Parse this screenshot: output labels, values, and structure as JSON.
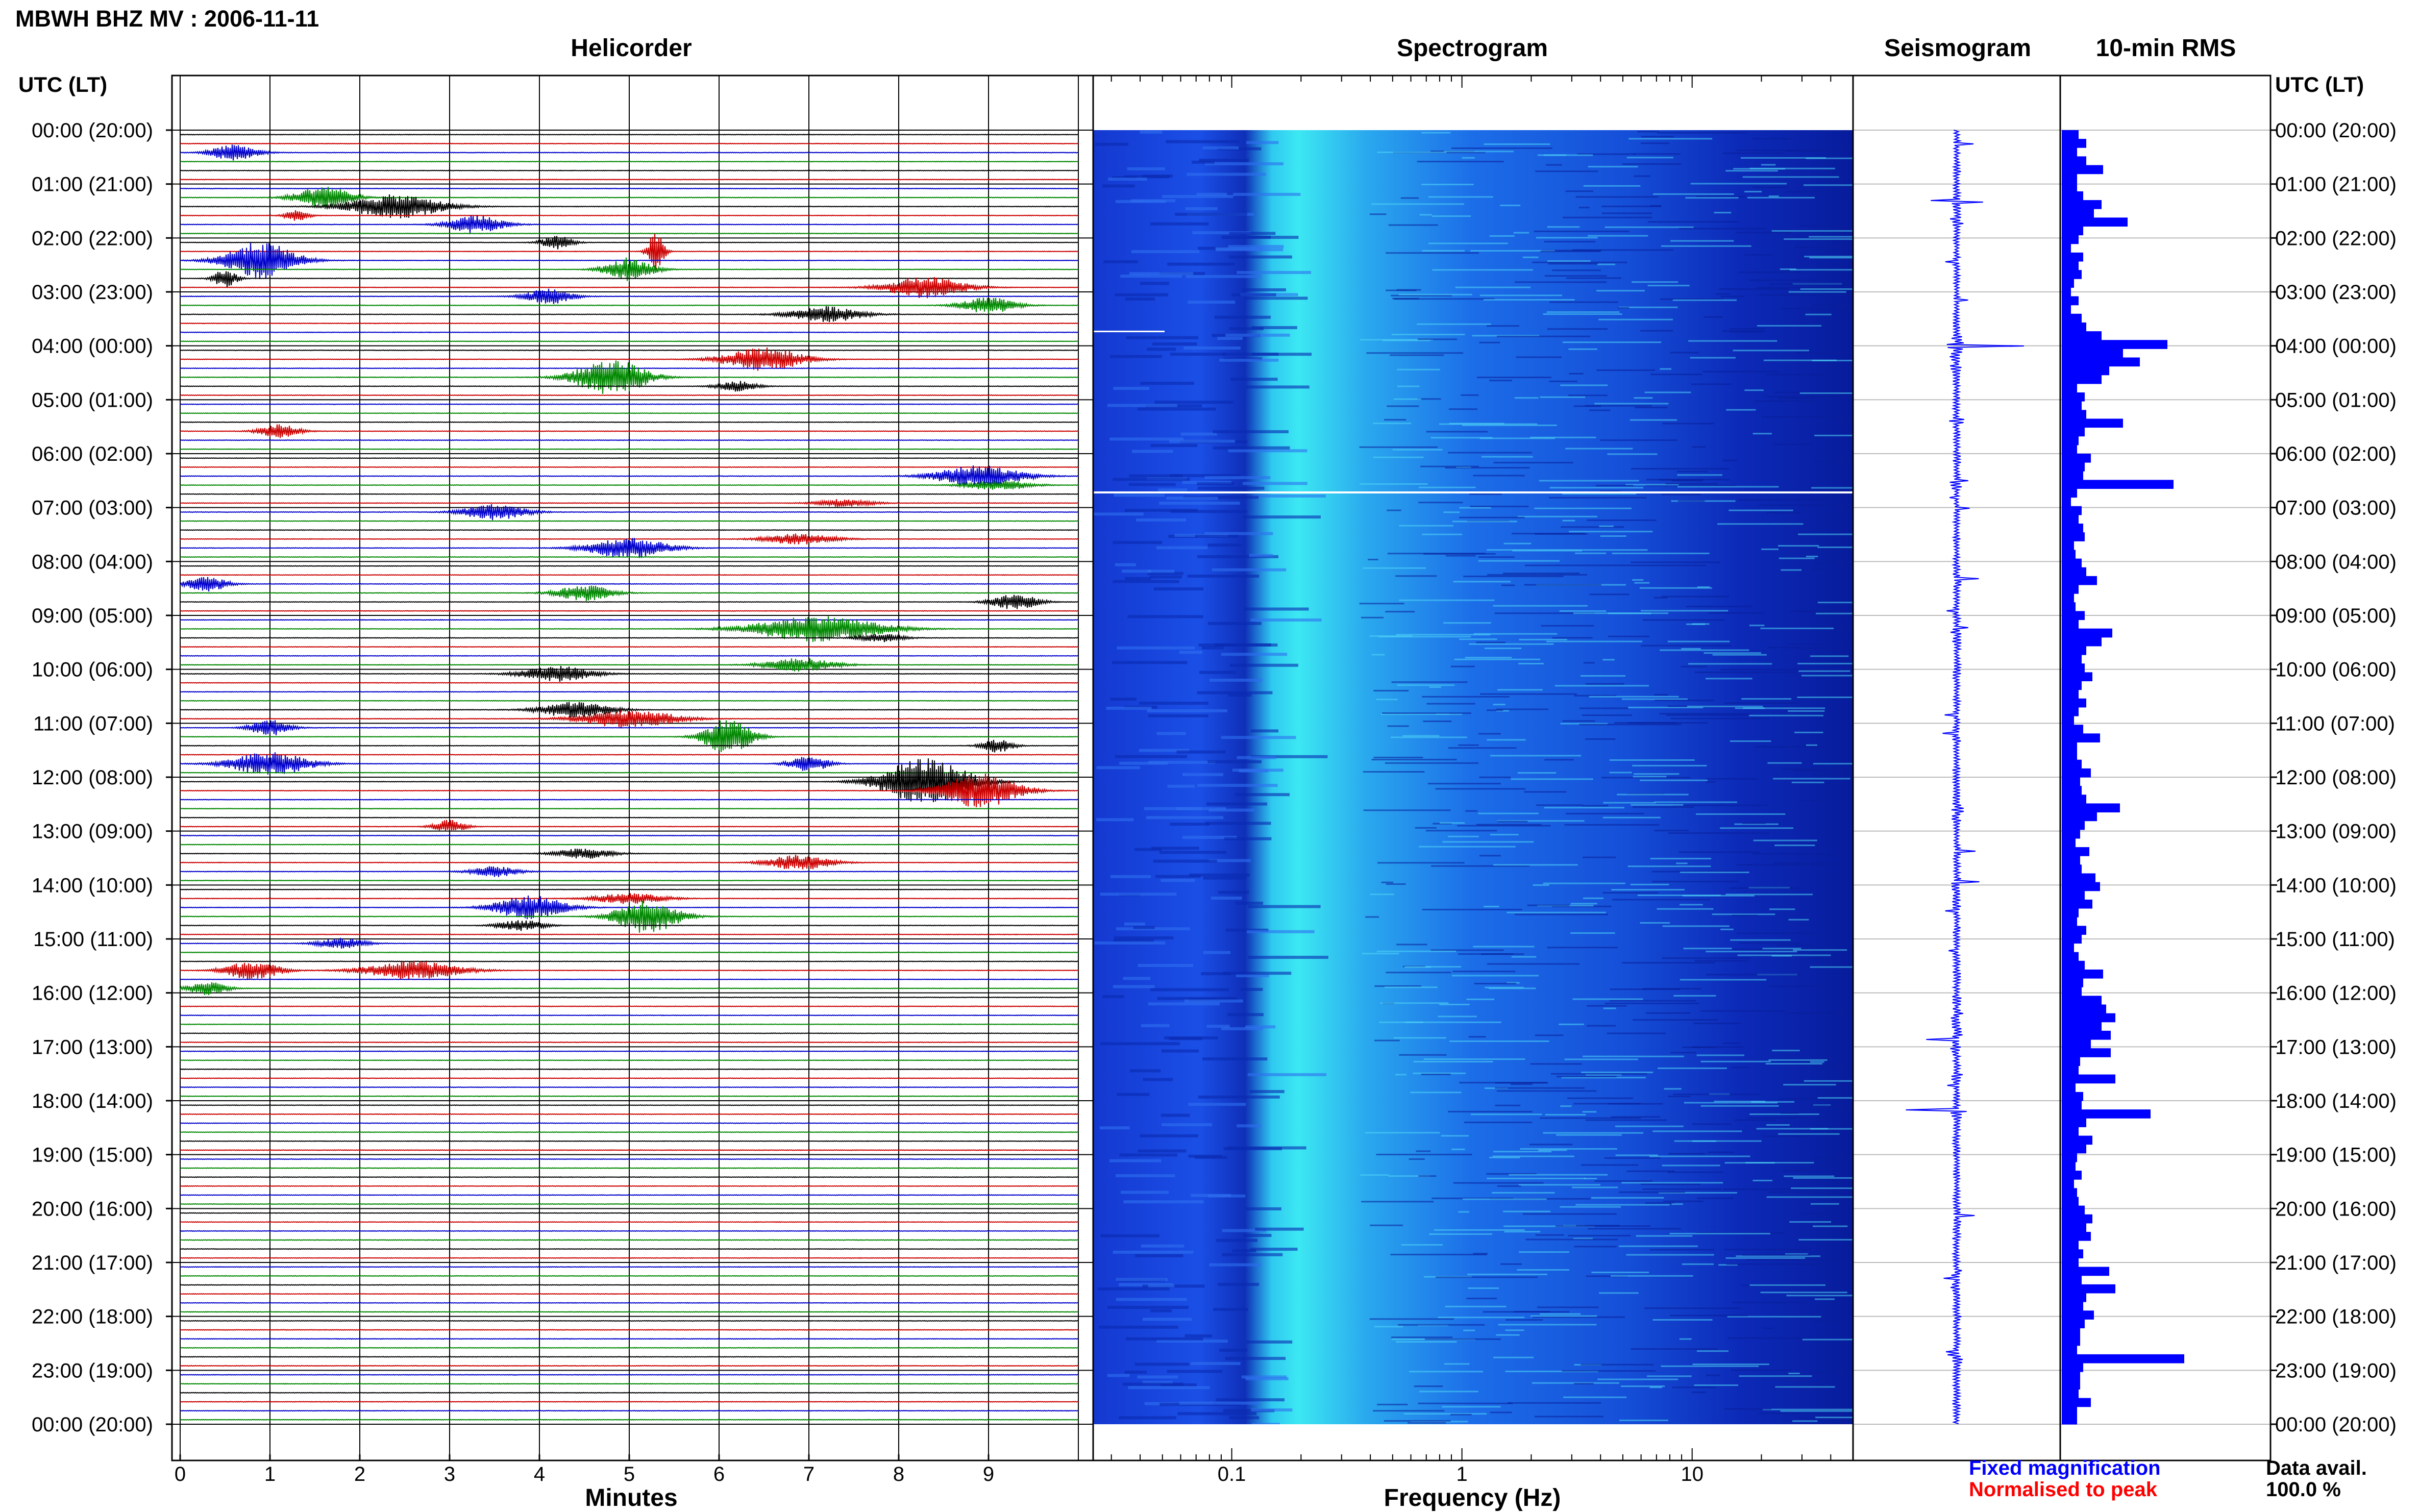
{
  "page": {
    "title": "MBWH BHZ MV : 2006-11-11",
    "utc_header_left": "UTC (LT)",
    "utc_header_right": "UTC (LT)"
  },
  "panels": {
    "helicorder_title": "Helicorder",
    "spectrogram_title": "Spectrogram",
    "seismogram_title": "Seismogram",
    "rms_title": "10-min RMS"
  },
  "legend": {
    "fixed": "Fixed magnification",
    "normalised": "Normalised to peak",
    "fixed_color": "#0000ff",
    "normalised_color": "#ff0000",
    "data_avail_label": "Data avail.",
    "data_avail_value": "100.0 %"
  },
  "chart_data": [
    {
      "type": "helicorder",
      "title": "Helicorder",
      "xlabel": "Minutes",
      "xlim": [
        0,
        10
      ],
      "x_ticks": [
        "0",
        "1",
        "2",
        "3",
        "4",
        "5",
        "6",
        "7",
        "8",
        "9"
      ],
      "y_tick_labels": [
        "00:00 (20:00)",
        "01:00 (21:00)",
        "02:00 (22:00)",
        "03:00 (23:00)",
        "04:00 (00:00)",
        "05:00 (01:00)",
        "06:00 (02:00)",
        "07:00 (03:00)",
        "08:00 (04:00)",
        "09:00 (05:00)",
        "10:00 (06:00)",
        "11:00 (07:00)",
        "12:00 (08:00)",
        "13:00 (09:00)",
        "14:00 (10:00)",
        "15:00 (11:00)",
        "16:00 (12:00)",
        "17:00 (13:00)",
        "18:00 (14:00)",
        "19:00 (15:00)",
        "20:00 (16:00)",
        "21:00 (17:00)",
        "22:00 (18:00)",
        "23:00 (19:00)",
        "00:00 (20:00)"
      ],
      "trace_colors": [
        "#000000",
        "#cc0000",
        "#0000cc",
        "#008800"
      ],
      "events": [
        {
          "line": 2,
          "minute": 0.6,
          "amp": 0.6,
          "dur": 0.6
        },
        {
          "line": 7,
          "minute": 1.6,
          "amp": 0.9,
          "dur": 0.7
        },
        {
          "line": 8,
          "minute": 2.4,
          "amp": 0.9,
          "dur": 1.2
        },
        {
          "line": 9,
          "minute": 1.3,
          "amp": 0.4,
          "dur": 0.3
        },
        {
          "line": 10,
          "minute": 3.3,
          "amp": 0.7,
          "dur": 0.7
        },
        {
          "line": 12,
          "minute": 4.2,
          "amp": 0.5,
          "dur": 0.4
        },
        {
          "line": 13,
          "minute": 5.3,
          "amp": 1.6,
          "dur": 0.2
        },
        {
          "line": 14,
          "minute": 0.9,
          "amp": 1.4,
          "dur": 0.9
        },
        {
          "line": 15,
          "minute": 5.0,
          "amp": 0.9,
          "dur": 0.6
        },
        {
          "line": 16,
          "minute": 0.5,
          "amp": 0.7,
          "dur": 0.3
        },
        {
          "line": 17,
          "minute": 8.3,
          "amp": 0.8,
          "dur": 1.0
        },
        {
          "line": 18,
          "minute": 4.1,
          "amp": 0.6,
          "dur": 0.6
        },
        {
          "line": 19,
          "minute": 9.0,
          "amp": 0.6,
          "dur": 0.7
        },
        {
          "line": 20,
          "minute": 7.2,
          "amp": 0.6,
          "dur": 0.9
        },
        {
          "line": 25,
          "minute": 6.5,
          "amp": 0.9,
          "dur": 1.0
        },
        {
          "line": 27,
          "minute": 4.8,
          "amp": 1.4,
          "dur": 0.9
        },
        {
          "line": 28,
          "minute": 6.2,
          "amp": 0.4,
          "dur": 0.5
        },
        {
          "line": 33,
          "minute": 1.1,
          "amp": 0.5,
          "dur": 0.5
        },
        {
          "line": 38,
          "minute": 8.9,
          "amp": 0.8,
          "dur": 1.1
        },
        {
          "line": 39,
          "minute": 9.1,
          "amp": 0.4,
          "dur": 0.8
        },
        {
          "line": 41,
          "minute": 7.4,
          "amp": 0.3,
          "dur": 0.7
        },
        {
          "line": 42,
          "minute": 3.5,
          "amp": 0.6,
          "dur": 0.8
        },
        {
          "line": 45,
          "minute": 6.9,
          "amp": 0.4,
          "dur": 0.9
        },
        {
          "line": 46,
          "minute": 5.0,
          "amp": 0.8,
          "dur": 1.0
        },
        {
          "line": 50,
          "minute": 0.3,
          "amp": 0.6,
          "dur": 0.5
        },
        {
          "line": 51,
          "minute": 4.5,
          "amp": 0.6,
          "dur": 0.7
        },
        {
          "line": 52,
          "minute": 9.3,
          "amp": 0.6,
          "dur": 0.6
        },
        {
          "line": 55,
          "minute": 7.1,
          "amp": 1.0,
          "dur": 1.6
        },
        {
          "line": 56,
          "minute": 7.8,
          "amp": 0.3,
          "dur": 0.6
        },
        {
          "line": 59,
          "minute": 6.9,
          "amp": 0.5,
          "dur": 0.9
        },
        {
          "line": 60,
          "minute": 4.2,
          "amp": 0.6,
          "dur": 0.9
        },
        {
          "line": 64,
          "minute": 4.4,
          "amp": 0.6,
          "dur": 0.9
        },
        {
          "line": 65,
          "minute": 5.0,
          "amp": 0.7,
          "dur": 1.2
        },
        {
          "line": 66,
          "minute": 1.0,
          "amp": 0.6,
          "dur": 0.5
        },
        {
          "line": 67,
          "minute": 6.1,
          "amp": 1.4,
          "dur": 0.6
        },
        {
          "line": 68,
          "minute": 9.1,
          "amp": 0.5,
          "dur": 0.4
        },
        {
          "line": 70,
          "minute": 1.0,
          "amp": 0.9,
          "dur": 1.0
        },
        {
          "line": 70,
          "minute": 7.0,
          "amp": 0.6,
          "dur": 0.5
        },
        {
          "line": 72,
          "minute": 8.3,
          "amp": 1.8,
          "dur": 1.1
        },
        {
          "line": 73,
          "minute": 8.9,
          "amp": 1.3,
          "dur": 1.0
        },
        {
          "line": 77,
          "minute": 3.0,
          "amp": 0.5,
          "dur": 0.4
        },
        {
          "line": 80,
          "minute": 4.5,
          "amp": 0.4,
          "dur": 0.7
        },
        {
          "line": 81,
          "minute": 6.9,
          "amp": 0.6,
          "dur": 0.8
        },
        {
          "line": 82,
          "minute": 3.5,
          "amp": 0.4,
          "dur": 0.6
        },
        {
          "line": 85,
          "minute": 5.0,
          "amp": 0.4,
          "dur": 0.9
        },
        {
          "line": 86,
          "minute": 3.9,
          "amp": 0.9,
          "dur": 0.9
        },
        {
          "line": 87,
          "minute": 5.2,
          "amp": 1.3,
          "dur": 0.8
        },
        {
          "line": 88,
          "minute": 3.8,
          "amp": 0.4,
          "dur": 0.6
        },
        {
          "line": 90,
          "minute": 1.8,
          "amp": 0.4,
          "dur": 0.6
        },
        {
          "line": 93,
          "minute": 0.8,
          "amp": 0.7,
          "dur": 0.7
        },
        {
          "line": 93,
          "minute": 2.6,
          "amp": 0.7,
          "dur": 1.2
        },
        {
          "line": 95,
          "minute": 0.3,
          "amp": 0.5,
          "dur": 0.5
        }
      ]
    },
    {
      "type": "heatmap",
      "title": "Spectrogram",
      "xlabel": "Frequency (Hz)",
      "x_scale": "log",
      "xlim": [
        0.025,
        50
      ],
      "x_ticks": [
        "0.1",
        "1",
        "10"
      ],
      "x_tick_values": [
        0.1,
        1,
        10
      ]
    },
    {
      "type": "seismogram",
      "title": "Seismogram",
      "color": "#0000ff"
    },
    {
      "type": "bar",
      "title": "10-min RMS",
      "orientation": "horizontal",
      "color": "#0000ff",
      "bin_minutes": 10,
      "xlim": [
        0,
        1
      ],
      "values": [
        0.11,
        0.16,
        0.1,
        0.16,
        0.27,
        0.1,
        0.1,
        0.14,
        0.26,
        0.21,
        0.43,
        0.14,
        0.11,
        0.06,
        0.14,
        0.11,
        0.13,
        0.08,
        0.06,
        0.11,
        0.06,
        0.13,
        0.16,
        0.26,
        0.69,
        0.4,
        0.51,
        0.31,
        0.26,
        0.1,
        0.15,
        0.13,
        0.16,
        0.4,
        0.15,
        0.11,
        0.1,
        0.19,
        0.15,
        0.14,
        0.73,
        0.1,
        0.06,
        0.13,
        0.11,
        0.14,
        0.15,
        0.08,
        0.09,
        0.13,
        0.16,
        0.23,
        0.11,
        0.08,
        0.09,
        0.15,
        0.11,
        0.33,
        0.26,
        0.16,
        0.13,
        0.15,
        0.2,
        0.13,
        0.11,
        0.16,
        0.11,
        0.08,
        0.14,
        0.25,
        0.1,
        0.1,
        0.13,
        0.19,
        0.12,
        0.13,
        0.16,
        0.38,
        0.23,
        0.15,
        0.12,
        0.09,
        0.18,
        0.12,
        0.13,
        0.22,
        0.25,
        0.15,
        0.2,
        0.11,
        0.1,
        0.16,
        0.13,
        0.08,
        0.11,
        0.15,
        0.27,
        0.14,
        0.13,
        0.26,
        0.29,
        0.35,
        0.26,
        0.32,
        0.19,
        0.32,
        0.12,
        0.11,
        0.35,
        0.09,
        0.14,
        0.13,
        0.58,
        0.16,
        0.11,
        0.2,
        0.16,
        0.1,
        0.09,
        0.13,
        0.08,
        0.1,
        0.11,
        0.15,
        0.2,
        0.16,
        0.19,
        0.11,
        0.14,
        0.11,
        0.31,
        0.13,
        0.35,
        0.16,
        0.14,
        0.21,
        0.15,
        0.12,
        0.12,
        0.1,
        0.8,
        0.14,
        0.12,
        0.12,
        0.11,
        0.19,
        0.1,
        0.1
      ]
    }
  ]
}
